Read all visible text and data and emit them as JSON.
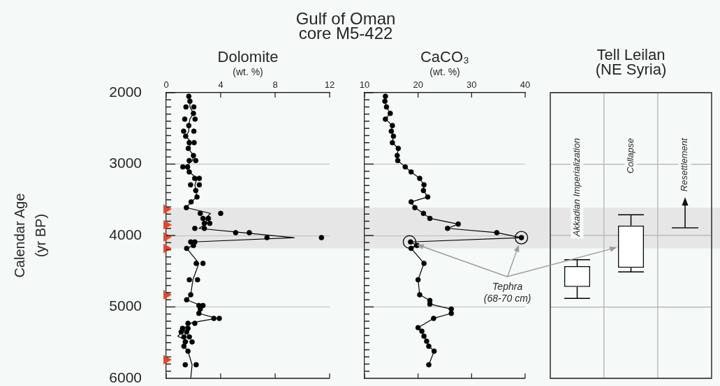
{
  "chart_data": [
    {
      "type": "line",
      "title": "Gulf of Oman\ncore M5-422",
      "subtitle": "Dolomite",
      "xlabel": "(wt. %)",
      "ylabel": "Calendar Age\n(yr BP)",
      "xlim": [
        0,
        12
      ],
      "xticks": [
        0,
        4,
        8,
        12
      ],
      "ylim": [
        6000,
        2000
      ],
      "yticks": [
        2000,
        {
          "value": 2100,
          "label": null
        },
        {
          "value": 2200,
          "label": null
        },
        {
          "value": 2300,
          "label": null
        },
        {
          "value": 2400,
          "label": null
        },
        {
          "value": 2500,
          "label": null
        },
        {
          "value": 2600,
          "label": null
        },
        {
          "value": 2700,
          "label": null
        },
        {
          "value": 2800,
          "label": null
        },
        {
          "value": 2900,
          "label": null
        },
        3000,
        {
          "value": 3100,
          "label": null
        },
        {
          "value": 3200,
          "label": null
        },
        {
          "value": 3300,
          "label": null
        },
        {
          "value": 3400,
          "label": null
        },
        {
          "value": 3500,
          "label": null
        },
        {
          "value": 3600,
          "label": null
        },
        {
          "value": 3700,
          "label": null
        },
        {
          "value": 3800,
          "label": null
        },
        {
          "value": 3900,
          "label": null
        },
        4000,
        {
          "value": 4100,
          "label": null
        },
        {
          "value": 4200,
          "label": null
        },
        {
          "value": 4300,
          "label": null
        },
        {
          "value": 4400,
          "label": null
        },
        {
          "value": 4500,
          "label": null
        },
        {
          "value": 4600,
          "label": null
        },
        {
          "value": 4700,
          "label": null
        },
        {
          "value": 4800,
          "label": null
        },
        {
          "value": 4900,
          "label": null
        },
        5000,
        {
          "value": 5100,
          "label": null
        },
        {
          "value": 5200,
          "label": null
        },
        {
          "value": 5300,
          "label": null
        },
        {
          "value": 5400,
          "label": null
        },
        {
          "value": 5500,
          "label": null
        },
        {
          "value": 5600,
          "label": null
        },
        {
          "value": 5700,
          "label": null
        },
        {
          "value": 5800,
          "label": null
        },
        {
          "value": 5900,
          "label": null
        },
        6000
      ],
      "grid": "y",
      "bands": [
        {
          "axis": "y",
          "from": 3610,
          "to": 4180,
          "color": "#e6e6e6"
        }
      ],
      "series": [
        {
          "type": "line",
          "color": "#000000",
          "marker": "none",
          "x": [
            1.66,
            1.74,
            1.74,
            2.0,
            1.74,
            1.66,
            1.66,
            1.43,
            1.87,
            1.62,
            2.0,
            1.93,
            1.4,
            1.69,
            2.26,
            2.11,
            2.17,
            2.26,
            1.83,
            1.48,
            3.25,
            2.9,
            3.0,
            2.4,
            5.6,
            9.4,
            1.96,
            2.0,
            1.5,
            2.4,
            1.96,
            1.8,
            1.5,
            2.55,
            2.5,
            2.4,
            3.7,
            1.9,
            1.35,
            1.27,
            0.85,
            1.6,
            1.3,
            1.6,
            1.9,
            1.8
          ],
          "values": [
            2050,
            2120,
            2200,
            2290,
            2370,
            2460,
            2540,
            2610,
            2700,
            2780,
            2880,
            2950,
            3040,
            3110,
            3200,
            3290,
            3370,
            3460,
            3530,
            3610,
            3690,
            3760,
            3830,
            3900,
            3960,
            4030,
            4090,
            4140,
            4180,
            4390,
            4620,
            4830,
            4900,
            4980,
            5030,
            5090,
            5160,
            5220,
            5290,
            5340,
            5410,
            5480,
            5550,
            5620,
            5810,
            6000
          ]
        },
        {
          "type": "scatter",
          "color": "#000000",
          "marker": "circle",
          "x": [
            1.66,
            1.74,
            1.45,
            2.03,
            2.0,
            1.36,
            2.12,
            1.66,
            1.28,
            2.03,
            1.43,
            1.69,
            2.05,
            1.62,
            2.0,
            1.69,
            2.17,
            1.22,
            1.57,
            1.69,
            2.09,
            2.43,
            1.79,
            2.43,
            2.17,
            2.26,
            1.83,
            1.48,
            2.5,
            4.0,
            2.7,
            3.1,
            2.8,
            3.2,
            2.1,
            2.8,
            5.1,
            6.1,
            7.4,
            11.4,
            1.8,
            2.1,
            2.0,
            1.5,
            2.2,
            2.7,
            1.7,
            2.3,
            1.8,
            1.5,
            2.4,
            2.7,
            2.5,
            2.4,
            3.5,
            3.9,
            1.6,
            2.1,
            1.2,
            1.6,
            1.1,
            1.5,
            1.3,
            1.7,
            1.4,
            1.9,
            1.3,
            1.6,
            1.4,
            2.2
          ],
          "values": [
            2050,
            2120,
            2200,
            2200,
            2290,
            2370,
            2370,
            2460,
            2540,
            2540,
            2610,
            2700,
            2700,
            2780,
            2880,
            2950,
            2950,
            3040,
            3040,
            3110,
            3200,
            3200,
            3290,
            3290,
            3370,
            3460,
            3530,
            3610,
            3690,
            3690,
            3760,
            3760,
            3830,
            3830,
            3900,
            3900,
            3960,
            3960,
            4030,
            4030,
            4090,
            4090,
            4140,
            4180,
            4390,
            4390,
            4620,
            4620,
            4830,
            4900,
            4980,
            4980,
            5030,
            5090,
            5160,
            5160,
            5230,
            5230,
            5300,
            5300,
            5350,
            5350,
            5420,
            5420,
            5490,
            5490,
            5550,
            5620,
            5810,
            5810
          ]
        },
        {
          "type": "scatter",
          "color": "#e0472c",
          "marker": "triangle",
          "x": [
            0,
            0,
            0,
            0,
            0,
            0
          ],
          "values": [
            3630,
            3850,
            4020,
            4180,
            4830,
            5740
          ]
        }
      ]
    },
    {
      "type": "line",
      "title": "CaCO₃",
      "xlabel": "(wt. %)",
      "xlim": [
        10,
        40
      ],
      "xticks": [
        10,
        20,
        30,
        40
      ],
      "ylim": [
        6000,
        2000
      ],
      "yticks": [
        2000,
        {
          "value": 2100,
          "label": null
        },
        {
          "value": 2200,
          "label": null
        },
        {
          "value": 2300,
          "label": null
        },
        {
          "value": 2400,
          "label": null
        },
        {
          "value": 2500,
          "label": null
        },
        {
          "value": 2600,
          "label": null
        },
        {
          "value": 2700,
          "label": null
        },
        {
          "value": 2800,
          "label": null
        },
        {
          "value": 2900,
          "label": null
        },
        3000,
        {
          "value": 3100,
          "label": null
        },
        {
          "value": 3200,
          "label": null
        },
        {
          "value": 3300,
          "label": null
        },
        {
          "value": 3400,
          "label": null
        },
        {
          "value": 3500,
          "label": null
        },
        {
          "value": 3600,
          "label": null
        },
        {
          "value": 3700,
          "label": null
        },
        {
          "value": 3800,
          "label": null
        },
        {
          "value": 3900,
          "label": null
        },
        4000,
        {
          "value": 4100,
          "label": null
        },
        {
          "value": 4200,
          "label": null
        },
        {
          "value": 4300,
          "label": null
        },
        {
          "value": 4400,
          "label": null
        },
        {
          "value": 4500,
          "label": null
        },
        {
          "value": 4600,
          "label": null
        },
        {
          "value": 4700,
          "label": null
        },
        {
          "value": 4800,
          "label": null
        },
        {
          "value": 4900,
          "label": null
        },
        5000,
        {
          "value": 5100,
          "label": null
        },
        {
          "value": 5200,
          "label": null
        },
        {
          "value": 5300,
          "label": null
        },
        {
          "value": 5400,
          "label": null
        },
        {
          "value": 5500,
          "label": null
        },
        {
          "value": 5600,
          "label": null
        },
        {
          "value": 5700,
          "label": null
        },
        {
          "value": 5800,
          "label": null
        },
        {
          "value": 5900,
          "label": null
        },
        6000
      ],
      "tick_labels": "x",
      "grid": "y",
      "bands": [
        {
          "axis": "y",
          "from": 3610,
          "to": 4180,
          "color": "#e6e6e6"
        }
      ],
      "series": [
        {
          "type": "line",
          "color": "#000000",
          "marker": "circle",
          "x": [
            13.9,
            13.8,
            14.1,
            14.8,
            13.9,
            15.2,
            15.0,
            15.4,
            15.2,
            16.3,
            16.1,
            16.2,
            17.6,
            18.7,
            20.3,
            21.1,
            21.0,
            21.8,
            18.7,
            19.4,
            21.0,
            22.2,
            27.5,
            25.5,
            34.7,
            39.3,
            18.6,
            19.8,
            18.7,
            21.1,
            20.0,
            20.3,
            22.2,
            22.2,
            26.2,
            26.2,
            22.9,
            20.0,
            20.7,
            21.1,
            21.6,
            22.0,
            23.0,
            22.0
          ],
          "values": [
            2050,
            2120,
            2200,
            2290,
            2370,
            2460,
            2540,
            2610,
            2700,
            2780,
            2880,
            2950,
            3040,
            3110,
            3200,
            3290,
            3370,
            3460,
            3530,
            3610,
            3690,
            3760,
            3840,
            3900,
            3960,
            4030,
            4090,
            4140,
            4180,
            4390,
            4620,
            4830,
            4910,
            4960,
            5030,
            5090,
            5160,
            5290,
            5340,
            5410,
            5480,
            5550,
            5620,
            5810
          ]
        },
        {
          "type": "scatter",
          "name": "Tephra\n(68-70 cm)",
          "color": "#000000",
          "marker": "circle",
          "x": [
            18.4,
            39.3
          ],
          "values": [
            4090,
            4030
          ]
        }
      ]
    },
    {
      "type": "box",
      "title": "Tell Leilan\n(NE Syria)",
      "categories": [
        "Akkadian Imperialization",
        "Collapse",
        null
      ],
      "ylim": [
        6000,
        2000
      ],
      "yticks": [
        2000,
        3000,
        4000,
        5000,
        6000
      ],
      "tick_labels": "x",
      "grid": true,
      "bands": [
        {
          "axis": "y",
          "from": 3610,
          "to": 4180,
          "color": "#e6e6e6"
        }
      ],
      "annotations": [
        "Resettlement"
      ],
      "series": [
        {
          "type": "box",
          "color": "#000000",
          "boxes": [
            {
              "low": 4340,
              "q1": 4430,
              "median": 4590,
              "q3": 4720,
              "high": 4880
            },
            {
              "low": 3710,
              "q1": 3860,
              "median": 4170,
              "q3": 4450,
              "high": 4510
            },
            null
          ]
        }
      ]
    }
  ]
}
